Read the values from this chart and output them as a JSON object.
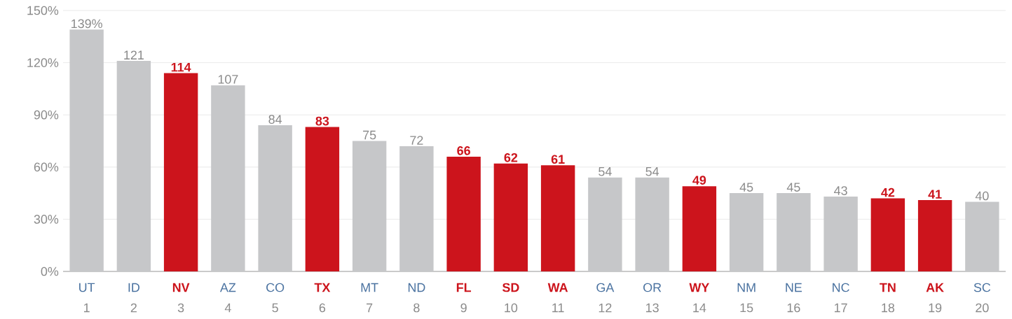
{
  "chart_data": {
    "type": "bar",
    "categories": [
      "UT",
      "ID",
      "NV",
      "AZ",
      "CO",
      "TX",
      "MT",
      "ND",
      "FL",
      "SD",
      "WA",
      "GA",
      "OR",
      "WY",
      "NM",
      "NE",
      "NC",
      "TN",
      "AK",
      "SC"
    ],
    "values": [
      139,
      121,
      114,
      107,
      84,
      83,
      75,
      72,
      66,
      62,
      61,
      54,
      54,
      49,
      45,
      45,
      43,
      42,
      41,
      40
    ],
    "colors": [
      "#c6c7c9",
      "#c6c7c9",
      "#cc141c",
      "#c6c7c9",
      "#c6c7c9",
      "#cc141c",
      "#c6c7c9",
      "#c6c7c9",
      "#cc141c",
      "#cc141c",
      "#cc141c",
      "#c6c7c9",
      "#c6c7c9",
      "#cc141c",
      "#c6c7c9",
      "#c6c7c9",
      "#c6c7c9",
      "#cc141c",
      "#cc141c",
      "#c6c7c9"
    ],
    "value_labels": [
      "139%",
      "121",
      "114",
      "107",
      "84",
      "83",
      "75",
      "72",
      "66",
      "62",
      "61",
      "54",
      "54",
      "49",
      "45",
      "45",
      "43",
      "42",
      "41",
      "40"
    ],
    "annotations": [
      "1",
      "2",
      "3",
      "4",
      "5",
      "6",
      "7",
      "8",
      "9",
      "10",
      "11",
      "12",
      "13",
      "14",
      "15",
      "16",
      "17",
      "18",
      "19",
      "20"
    ],
    "ylim": [
      0,
      150
    ],
    "yticks": [
      {
        "value": 0,
        "label": "0%"
      },
      {
        "value": 30,
        "label": "30%"
      },
      {
        "value": 60,
        "label": "60%"
      },
      {
        "value": 90,
        "label": "90%"
      },
      {
        "value": 120,
        "label": "120%"
      },
      {
        "value": 150,
        "label": "150%"
      }
    ],
    "grid": "y"
  }
}
